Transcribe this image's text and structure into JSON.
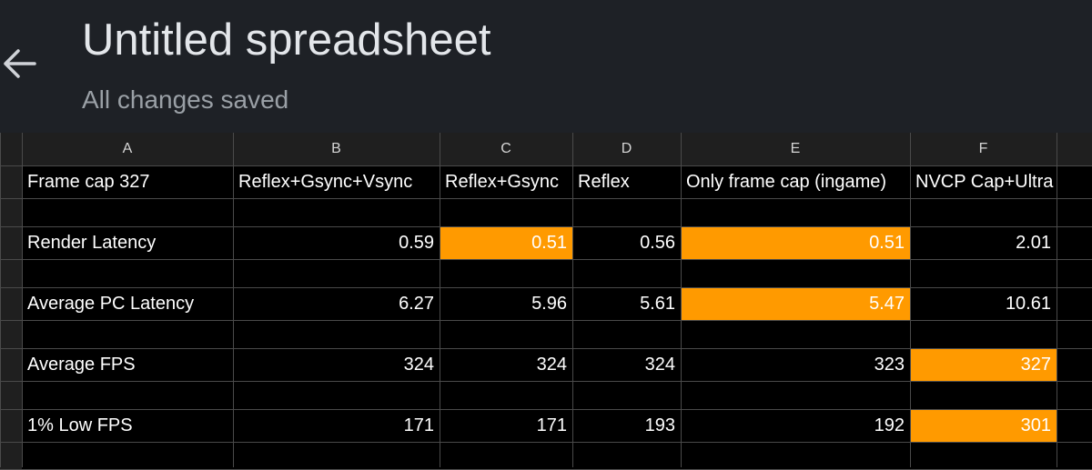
{
  "header": {
    "title": "Untitled spreadsheet",
    "status": "All changes saved",
    "back_icon": "arrow-left-icon"
  },
  "sheet": {
    "columns": [
      "A",
      "B",
      "C",
      "D",
      "E",
      "F"
    ],
    "rows": [
      [
        "Frame cap 327",
        "Reflex+Gsync+Vsync",
        "Reflex+Gsync",
        "Reflex",
        "Only frame cap (ingame)",
        "NVCP Cap+Ultra"
      ],
      [
        "",
        "",
        "",
        "",
        "",
        ""
      ],
      [
        "Render Latency",
        "0.59",
        "0.51",
        "0.56",
        "0.51",
        "2.01"
      ],
      [
        "",
        "",
        "",
        "",
        "",
        ""
      ],
      [
        "Average PC Latency",
        "6.27",
        "5.96",
        "5.61",
        "5.47",
        "10.61"
      ],
      [
        "",
        "",
        "",
        "",
        "",
        ""
      ],
      [
        "Average FPS",
        "324",
        "324",
        "324",
        "323",
        "327"
      ],
      [
        "",
        "",
        "",
        "",
        "",
        ""
      ],
      [
        "1% Low FPS",
        "171",
        "171",
        "193",
        "192",
        "301"
      ],
      [
        "",
        "",
        "",
        "",
        "",
        ""
      ]
    ],
    "highlighted": [
      [
        2,
        2
      ],
      [
        2,
        4
      ],
      [
        4,
        4
      ],
      [
        6,
        5
      ],
      [
        8,
        5
      ]
    ],
    "highlight_color": "#ff9a00"
  }
}
